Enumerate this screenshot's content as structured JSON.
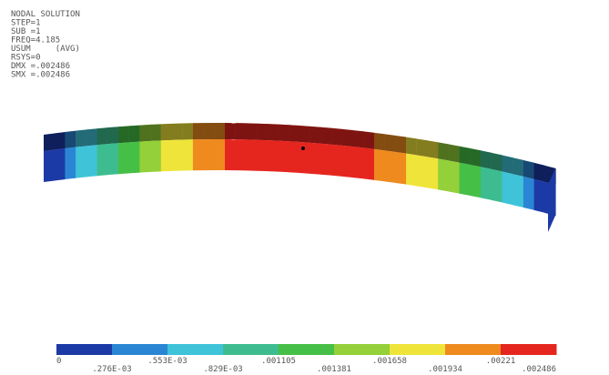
{
  "header": {
    "lines": [
      "NODAL SOLUTION",
      "STEP=1",
      "SUB =1",
      "FREQ=4.185",
      "USUM     (AVG)",
      "RSYS=0",
      "DMX =.002486",
      "SMX =.002486"
    ]
  },
  "legend": {
    "colors": [
      "#1c3aa6",
      "#2a86d4",
      "#3fc3d9",
      "#3dbd8f",
      "#46bf47",
      "#93d03a",
      "#efe43a",
      "#ef8a1f",
      "#e5261f"
    ],
    "labels": [
      "0",
      ".276E-03",
      ".553E-03",
      ".829E-03",
      ".001105",
      ".001381",
      ".001658",
      ".001934",
      ".00221",
      ".002486"
    ]
  }
}
